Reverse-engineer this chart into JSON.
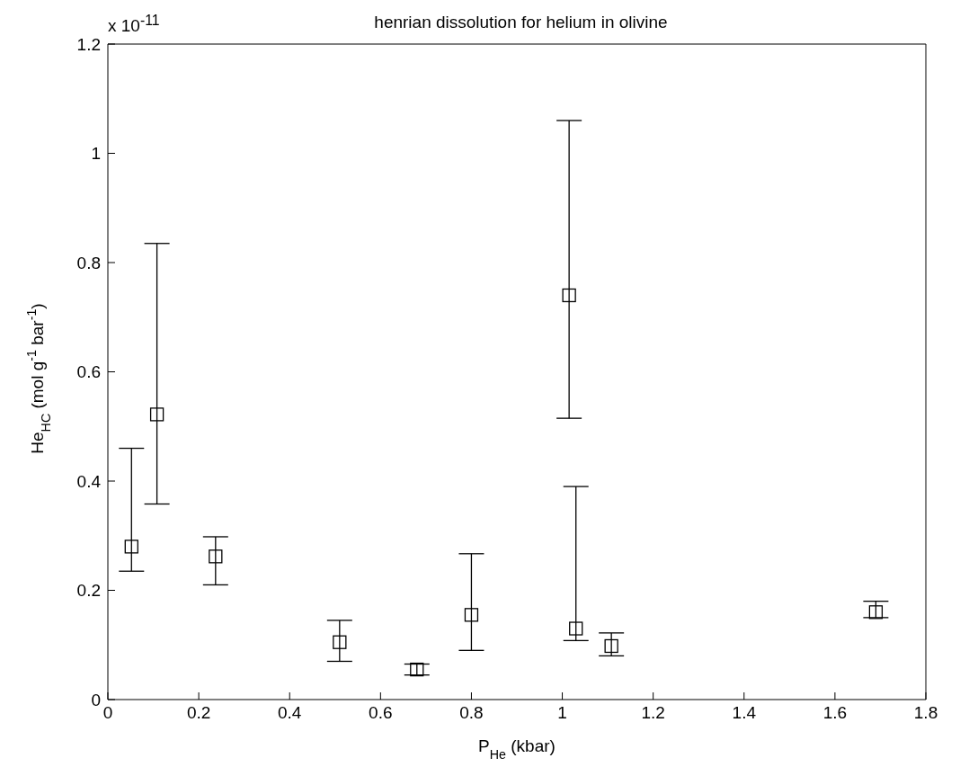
{
  "chart_data": {
    "type": "scatter",
    "title": "henrian dissolution for helium in olivine",
    "xlabel": "P$_{He}$ (kbar)",
    "ylabel": "He$_{HC}$ (mol g$^{-1}$ bar$^{-1}$)",
    "annotations": [
      "x 10$^{-11}$"
    ],
    "x": [
      0.052,
      0.108,
      0.237,
      0.51,
      0.68,
      0.8,
      1.015,
      1.03,
      1.108,
      1.69
    ],
    "values": [
      0.28,
      0.522,
      0.262,
      0.105,
      0.055,
      0.155,
      0.74,
      0.13,
      0.098,
      0.16
    ],
    "errors": [
      [
        0.235,
        0.46
      ],
      [
        0.358,
        0.835
      ],
      [
        0.21,
        0.298
      ],
      [
        0.07,
        0.145
      ],
      [
        0.045,
        0.065
      ],
      [
        0.09,
        0.267
      ],
      [
        0.515,
        1.06
      ],
      [
        0.108,
        0.39
      ],
      [
        0.08,
        0.122
      ],
      [
        0.15,
        0.18
      ]
    ],
    "color": "#000000",
    "marker": "square",
    "xlim": [
      0,
      1.8
    ],
    "xticks": [
      0,
      0.2,
      0.4,
      0.6,
      0.8,
      1,
      1.2,
      1.4,
      1.6,
      1.8
    ],
    "ylim": [
      0,
      1.2
    ],
    "yticks": [
      0,
      0.2,
      0.4,
      0.6,
      0.8,
      1,
      1.2
    ],
    "grid": false
  }
}
